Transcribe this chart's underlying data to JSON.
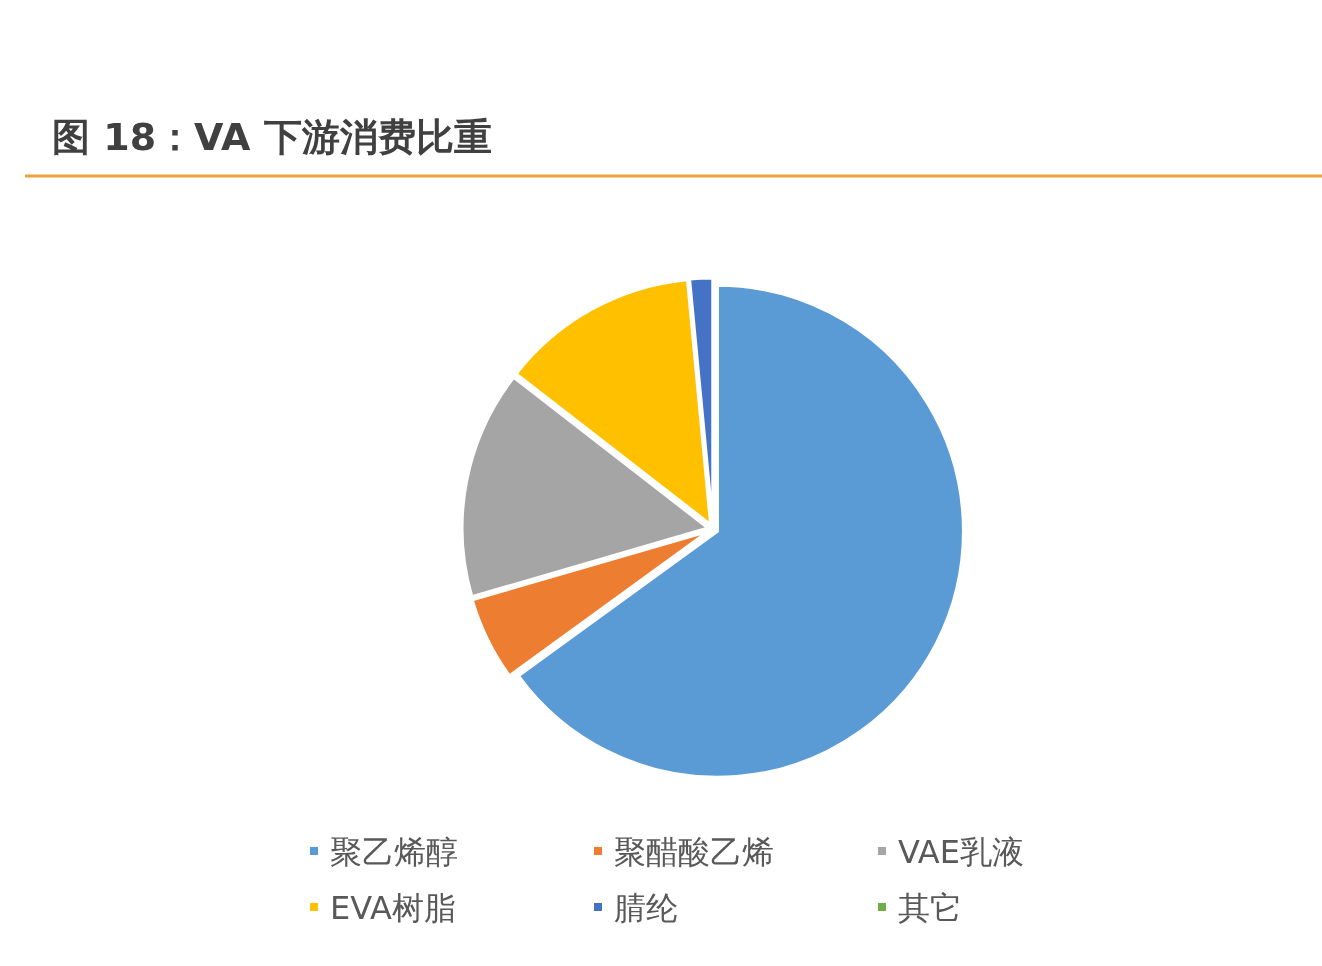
{
  "chart_data": {
    "type": "pie",
    "title": "图 18：VA 下游消费比重",
    "categories": [
      "聚乙烯醇",
      "聚醋酸乙烯",
      "VAE乳液",
      "EVA树脂",
      "腈纶",
      "其它"
    ],
    "values": [
      65,
      5.5,
      15,
      13,
      1.5,
      0
    ],
    "colors": [
      "#5b9bd5",
      "#ed7d31",
      "#a5a5a5",
      "#ffc000",
      "#4472c4",
      "#70ad47"
    ],
    "legend": "bottom"
  }
}
